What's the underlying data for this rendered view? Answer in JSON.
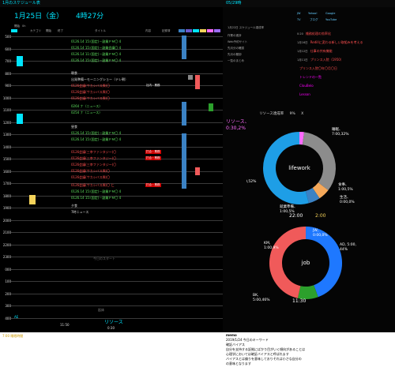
{
  "window": {
    "title_left": "1月のスケジュール表",
    "title_mid": "05/29時"
  },
  "schedule": {
    "date": "1月25日（金）",
    "time_now": "4時27分",
    "header_cols": [
      "開始",
      "0h",
      "カテゴリ",
      "開始",
      "終了",
      "タイトル",
      "内容",
      "記録済",
      "AI",
      "A2",
      "B1",
      "B2",
      "C1",
      "C2"
    ],
    "hours": [
      "500",
      "600",
      "700",
      "800",
      "900",
      "1000",
      "1100",
      "1200",
      "1300",
      "1400",
      "1500",
      "1600",
      "1700",
      "1800",
      "1900",
      "2000",
      "2100",
      "2200",
      "2300",
      "000",
      "100",
      "200",
      "300",
      "400"
    ],
    "rows": [
      {
        "label": "0126.14 15:(固定)－副業ＰＭ〇 4",
        "color": "#5fe35f",
        "cat": "",
        "catColor": ""
      },
      {
        "label": "0126.14 15:(固定)－副業会議〇 4",
        "color": "#5fe35f",
        "cat": "",
        "catColor": ""
      },
      {
        "label": "0126.14 11:(固定)－副業ＰＭ〇 4",
        "color": "#5fe35f",
        "cat": "",
        "catColor": ""
      },
      {
        "label": "0126.14 15:(固定)－副業ＰＭ〇 4",
        "color": "#5fe35f",
        "cat": "",
        "catColor": ""
      },
      {
        "label": "朝食",
        "color": "#ddd",
        "cat": "",
        "catColor": ""
      },
      {
        "label": "出発準備ーモーニングショー（テレ朝）",
        "color": "#ddd",
        "cat": "",
        "catColor": ""
      },
      {
        "label": "0126会議(サカシバス興)〇",
        "color": "#ff4f4f",
        "cat": "社内・業務",
        "catColor": ""
      },
      {
        "label": "0126会議(サカシバス興)〇",
        "color": "#ff4f4f",
        "cat": "",
        "catColor": ""
      },
      {
        "label": "0126会議(サカシバス興)〇",
        "color": "#ff4f4f",
        "cat": "",
        "catColor": ""
      },
      {
        "label": "0264 ナ〈ニュース〉",
        "color": "#5fe35f",
        "cat": "",
        "catColor": ""
      },
      {
        "label": "0254 ナ〈ニュース〉",
        "color": "#5fe35f",
        "cat": "",
        "catColor": ""
      },
      {
        "label": "昼食",
        "color": "#ddd",
        "cat": "",
        "catColor": ""
      },
      {
        "label": "0126.14 15:(固定)－副業ＰＭ〇 4",
        "color": "#5fe35f",
        "cat": "",
        "catColor": ""
      },
      {
        "label": "0126.14 15:(固定)－副業ＰＭ〇 4",
        "color": "#5fe35f",
        "cat": "",
        "catColor": ""
      },
      {
        "label": "0126会議(三幸ファンタジー)〇",
        "color": "#ff4f4f",
        "cat": "打合・業務",
        "catColor": "#c00"
      },
      {
        "label": "0126会議(三幸ファンタジー)〇",
        "color": "#ff4f4f",
        "cat": "打合・業務",
        "catColor": "#c00"
      },
      {
        "label": "0126会議(三幸ファンタジー)〇",
        "color": "#ff4f4f",
        "cat": "",
        "catColor": ""
      },
      {
        "label": "0126会議(サカシバス興)〇",
        "color": "#ff4f4f",
        "cat": "",
        "catColor": ""
      },
      {
        "label": "0126会議(サカシバス興)〇",
        "color": "#ff4f4f",
        "cat": "",
        "catColor": ""
      },
      {
        "label": "0126会議(サカシバス興)〇 仁",
        "color": "#ff4f4f",
        "cat": "打合・業務",
        "catColor": "#c00"
      },
      {
        "label": "0126.14 15:(固定)－副業ＰＭ〇 4",
        "color": "#5fe35f",
        "cat": "",
        "catColor": ""
      },
      {
        "label": "0126.14 15:(固定)－副業ＰＭ〇 4",
        "color": "#5fe35f",
        "cat": "",
        "catColor": ""
      },
      {
        "label": "夕食",
        "color": "#ddd",
        "cat": "",
        "catColor": ""
      },
      {
        "label": "7時ニュース",
        "color": "#ddd",
        "cat": "",
        "catColor": ""
      }
    ],
    "night_label": "今日のスタート",
    "bottom_label": "起床",
    "footer": {
      "a_label": "AE",
      "a_val": "11:50",
      "b_label": "リソース",
      "b_val": "0:30",
      "summary": "7:00 睡眠時間"
    }
  },
  "side": {
    "links": [
      "JW",
      "Yahoo!",
      "Google",
      "TV",
      "ブログ",
      "YouTube"
    ],
    "list_title": "1月22日 スケジュール達成率",
    "list": [
      {
        "t": "0:20",
        "txt": "雑務処理の効率化",
        "c": "#ff4f4f"
      },
      {
        "t": "1月16日",
        "txt": "Redillに変わる新しい取組みを考える",
        "c": "#ff4f4f"
      },
      {
        "t": "1月12日",
        "txt": "仕事の共有機能",
        "c": "#ff4f4f"
      },
      {
        "t": "1月11日",
        "txt": "プリンス入院（1950）",
        "c": "#ff4f4f"
      },
      {
        "t": "",
        "txt": "プリンス入院〇年〇月〇日",
        "c": "#ff4f4f"
      },
      {
        "t": "",
        "txt": "トレンドの一覧",
        "c": "#f0f"
      },
      {
        "t": "",
        "txt": "ClouBelo",
        "c": "#f0f"
      },
      {
        "t": "",
        "txt": "Lesson",
        "c": "#f0f"
      }
    ],
    "left_list": [
      "作業の進捗",
      "Web予約サイト",
      "先月分の確認",
      "先月の棚卸",
      "一覧のまとめ"
    ],
    "resource_title": "リソース達成率 　 9% 　 X",
    "big_label": "リソース、\n0:30,2%",
    "center_label": "lifework",
    "time_a": "22:00",
    "time_b": "2:00",
    "time_c": "11:30",
    "center2_label": "job",
    "memo_lines": [
      "memo",
      "2019/1/24 今日のキーワード",
      "確証バイアス",
      "自分を支持する証拠にばかり目がいく傾向があることは",
      "心理学においては確証バイアスと呼ばれます",
      "バイアスとは偏りを意味しておりそれは小さな自分の",
      "の意味となります"
    ]
  },
  "chart_data": [
    {
      "type": "pie",
      "title": "",
      "categories": [
        "リソース",
        "睡眠",
        "食事",
        "生活",
        "就業準備",
        "仕事"
      ],
      "labels": [
        "リソース、\n0:30,2%",
        "睡眠、\n7:00,32%",
        "食事、\n1:00,5%",
        "生活、\n0:00,0%",
        "就業準備、\n1:00,5%",
        "仕事、\n11:30,52%"
      ],
      "values": [
        2,
        32,
        5,
        0,
        5,
        52
      ],
      "colors": [
        "#ff6bff",
        "#8c8c8c",
        "#f5a85a",
        "#d9d9d9",
        "#3b82c4",
        "#1e9ee6"
      ]
    },
    {
      "type": "pie",
      "title": "",
      "categories": [
        "AD",
        "JW",
        "KM",
        "BK"
      ],
      "labels": [
        "AD, 5:00,\n44%",
        "JW,\n0:00,0%",
        "KM,\n1:00,9%",
        "BK,\n5:00,46%"
      ],
      "values": [
        44,
        0,
        9,
        46
      ],
      "colors": [
        "#1e78ff",
        "#e6e6e6",
        "#2ca02c",
        "#f05a5a"
      ]
    }
  ]
}
